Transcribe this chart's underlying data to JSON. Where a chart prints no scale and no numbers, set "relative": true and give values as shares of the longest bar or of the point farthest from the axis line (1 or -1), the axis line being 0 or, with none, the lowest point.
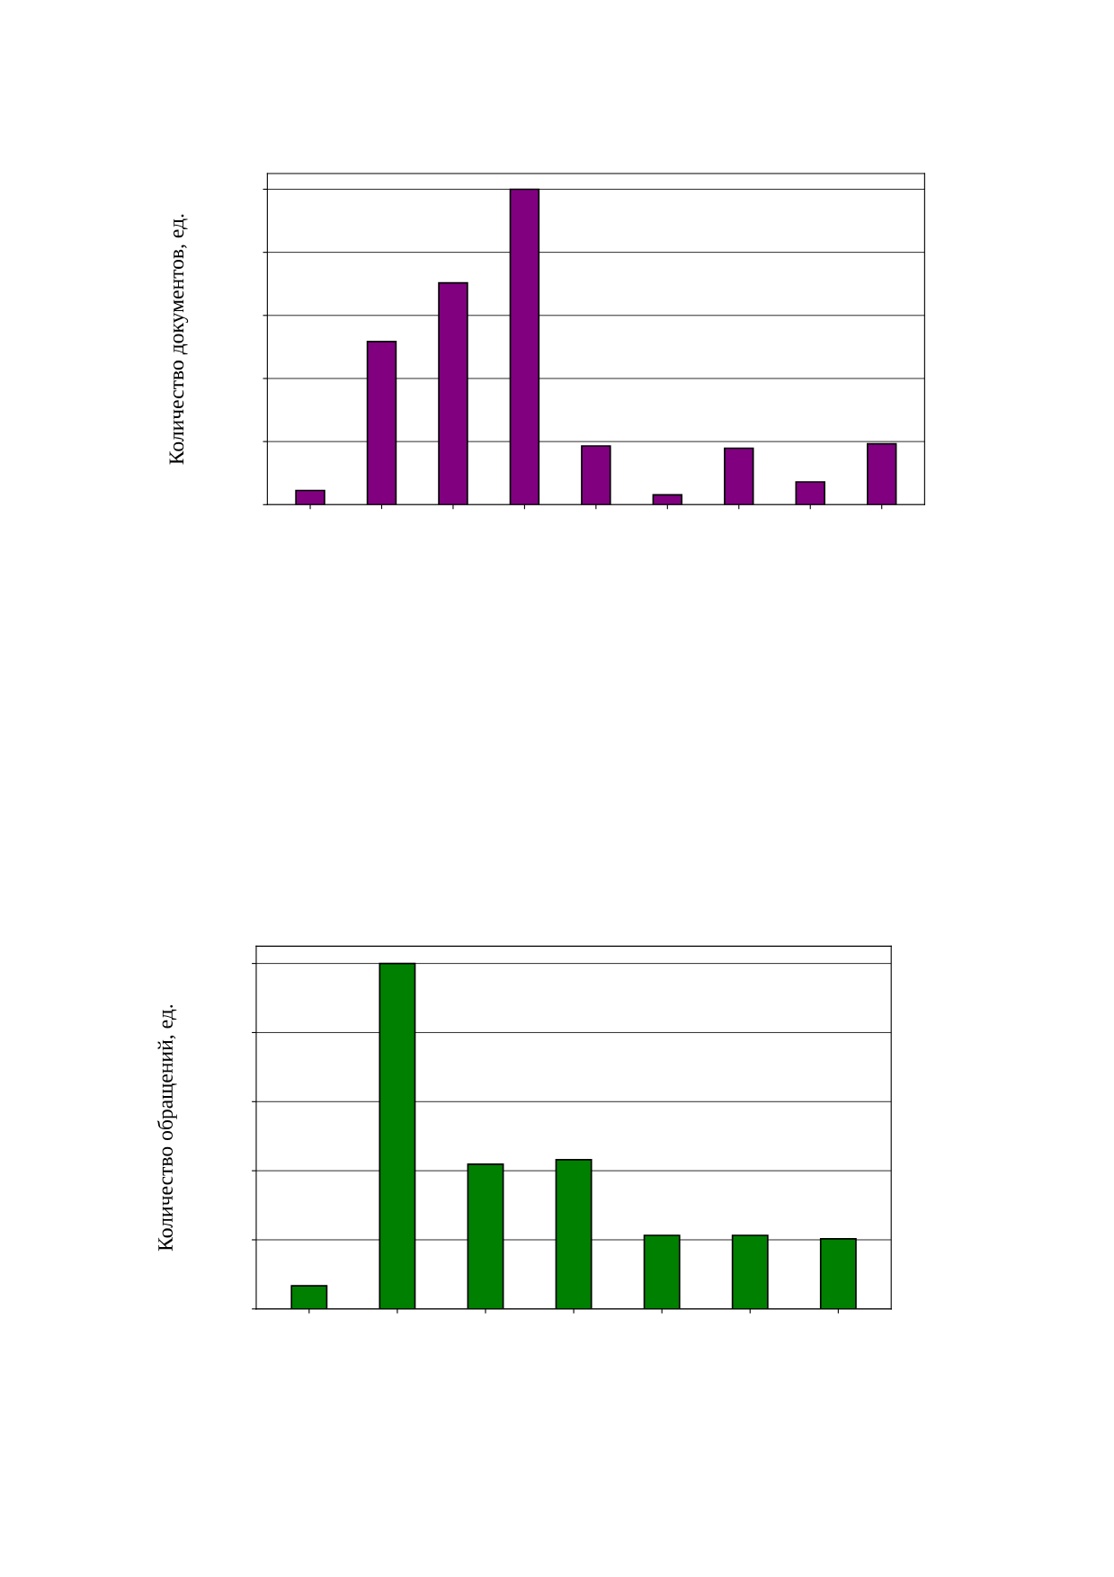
{
  "chart_data": [
    {
      "type": "bar",
      "ylabel": "Количество документов, ед.",
      "categories": [
        null,
        null,
        null,
        null,
        null,
        null,
        null,
        null,
        null
      ],
      "values": [
        0.045,
        0.517,
        0.703,
        1,
        0.186,
        0.031,
        0.179,
        0.072,
        0.193
      ],
      "color": "#800080",
      "relative": true,
      "grid": "y"
    },
    {
      "type": "bar",
      "ylabel": "Количество обращений, ед.",
      "categories": [
        null,
        null,
        null,
        null,
        null,
        null,
        null
      ],
      "values": [
        0.067,
        1,
        0.419,
        0.432,
        0.213,
        0.213,
        0.203
      ],
      "color": "#008000",
      "relative": true,
      "grid": "y"
    }
  ]
}
